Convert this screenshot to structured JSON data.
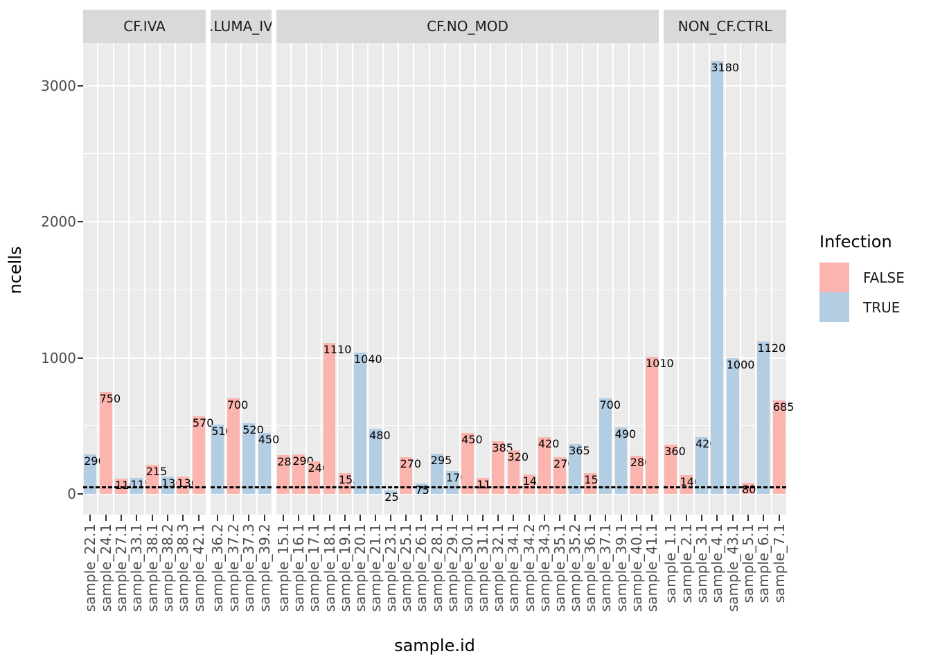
{
  "chart_data": {
    "type": "bar",
    "title": "",
    "xlabel": "sample.id",
    "ylabel": "ncells",
    "ylim": [
      0,
      3313
    ],
    "y_ticks": [
      0,
      1000,
      2000,
      3000
    ],
    "grid": "white-on-gray",
    "threshold_line": {
      "value": 50,
      "style": "dashed",
      "color": "#000000"
    },
    "legend": {
      "title": "Infection",
      "position": "right",
      "entries": [
        {
          "label": "FALSE",
          "color": "#FBB4AE"
        },
        {
          "label": "TRUE",
          "color": "#B3CDE3"
        }
      ]
    },
    "facets": [
      {
        "label": "CF.IVA",
        "bars": [
          {
            "sample": "sample_22.1",
            "infection": "TRUE",
            "ncells": 290
          },
          {
            "sample": "sample_24.1",
            "infection": "FALSE",
            "ncells": 750
          },
          {
            "sample": "sample_27.1",
            "infection": "FALSE",
            "ncells": 110
          },
          {
            "sample": "sample_33.1",
            "infection": "TRUE",
            "ncells": 115
          },
          {
            "sample": "sample_38.1",
            "infection": "FALSE",
            "ncells": 215
          },
          {
            "sample": "sample_38.2",
            "infection": "TRUE",
            "ncells": 130
          },
          {
            "sample": "sample_38.3",
            "infection": "FALSE",
            "ncells": 130
          },
          {
            "sample": "sample_42.1",
            "infection": "FALSE",
            "ncells": 570
          }
        ]
      },
      {
        "label": ".LUMA_IV",
        "bars": [
          {
            "sample": "sample_36.2",
            "infection": "TRUE",
            "ncells": 510
          },
          {
            "sample": "sample_37.2",
            "infection": "FALSE",
            "ncells": 700
          },
          {
            "sample": "sample_37.3",
            "infection": "TRUE",
            "ncells": 520
          },
          {
            "sample": "sample_39.2",
            "infection": "TRUE",
            "ncells": 450
          }
        ]
      },
      {
        "label": "CF.NO_MOD",
        "bars": [
          {
            "sample": "sample_15.1",
            "infection": "FALSE",
            "ncells": 285
          },
          {
            "sample": "sample_16.1",
            "infection": "FALSE",
            "ncells": 290
          },
          {
            "sample": "sample_17.1",
            "infection": "FALSE",
            "ncells": 240
          },
          {
            "sample": "sample_18.1",
            "infection": "FALSE",
            "ncells": 1110
          },
          {
            "sample": "sample_19.1",
            "infection": "FALSE",
            "ncells": 155
          },
          {
            "sample": "sample_20.1",
            "infection": "TRUE",
            "ncells": 1040
          },
          {
            "sample": "sample_21.1",
            "infection": "TRUE",
            "ncells": 480
          },
          {
            "sample": "sample_23.1",
            "infection": "TRUE",
            "ncells": 25
          },
          {
            "sample": "sample_25.1",
            "infection": "FALSE",
            "ncells": 270
          },
          {
            "sample": "sample_26.1",
            "infection": "TRUE",
            "ncells": 75
          },
          {
            "sample": "sample_28.1",
            "infection": "TRUE",
            "ncells": 295
          },
          {
            "sample": "sample_29.1",
            "infection": "TRUE",
            "ncells": 170
          },
          {
            "sample": "sample_30.1",
            "infection": "FALSE",
            "ncells": 450
          },
          {
            "sample": "sample_31.1",
            "infection": "FALSE",
            "ncells": 115
          },
          {
            "sample": "sample_32.1",
            "infection": "FALSE",
            "ncells": 385
          },
          {
            "sample": "sample_34.1",
            "infection": "FALSE",
            "ncells": 320
          },
          {
            "sample": "sample_34.2",
            "infection": "FALSE",
            "ncells": 145
          },
          {
            "sample": "sample_34.3",
            "infection": "FALSE",
            "ncells": 420
          },
          {
            "sample": "sample_35.1",
            "infection": "FALSE",
            "ncells": 270
          },
          {
            "sample": "sample_35.2",
            "infection": "TRUE",
            "ncells": 365
          },
          {
            "sample": "sample_36.1",
            "infection": "FALSE",
            "ncells": 155
          },
          {
            "sample": "sample_37.1",
            "infection": "TRUE",
            "ncells": 700
          },
          {
            "sample": "sample_39.1",
            "infection": "TRUE",
            "ncells": 490
          },
          {
            "sample": "sample_40.1",
            "infection": "FALSE",
            "ncells": 280
          },
          {
            "sample": "sample_41.1",
            "infection": "FALSE",
            "ncells": 1010
          }
        ]
      },
      {
        "label": "NON_CF.CTRL",
        "bars": [
          {
            "sample": "sample_1.1",
            "infection": "FALSE",
            "ncells": 360
          },
          {
            "sample": "sample_2.1",
            "infection": "FALSE",
            "ncells": 140
          },
          {
            "sample": "sample_3.1",
            "infection": "TRUE",
            "ncells": 420
          },
          {
            "sample": "sample_4.1",
            "infection": "TRUE",
            "ncells": 3180
          },
          {
            "sample": "sample_43.1",
            "infection": "TRUE",
            "ncells": 1000
          },
          {
            "sample": "sample_5.1",
            "infection": "FALSE",
            "ncells": 80
          },
          {
            "sample": "sample_6.1",
            "infection": "TRUE",
            "ncells": 1120
          },
          {
            "sample": "sample_7.1",
            "infection": "FALSE",
            "ncells": 685
          }
        ]
      }
    ]
  },
  "styles": {
    "panel_bg": "#EBEBEB",
    "strip_bg": "#D9D9D9",
    "grid_color": "#FFFFFF",
    "axis_text_color": "#4D4D4D",
    "tick_color": "#333333",
    "false_color": "#FBB4AE",
    "true_color": "#B3CDE3"
  }
}
